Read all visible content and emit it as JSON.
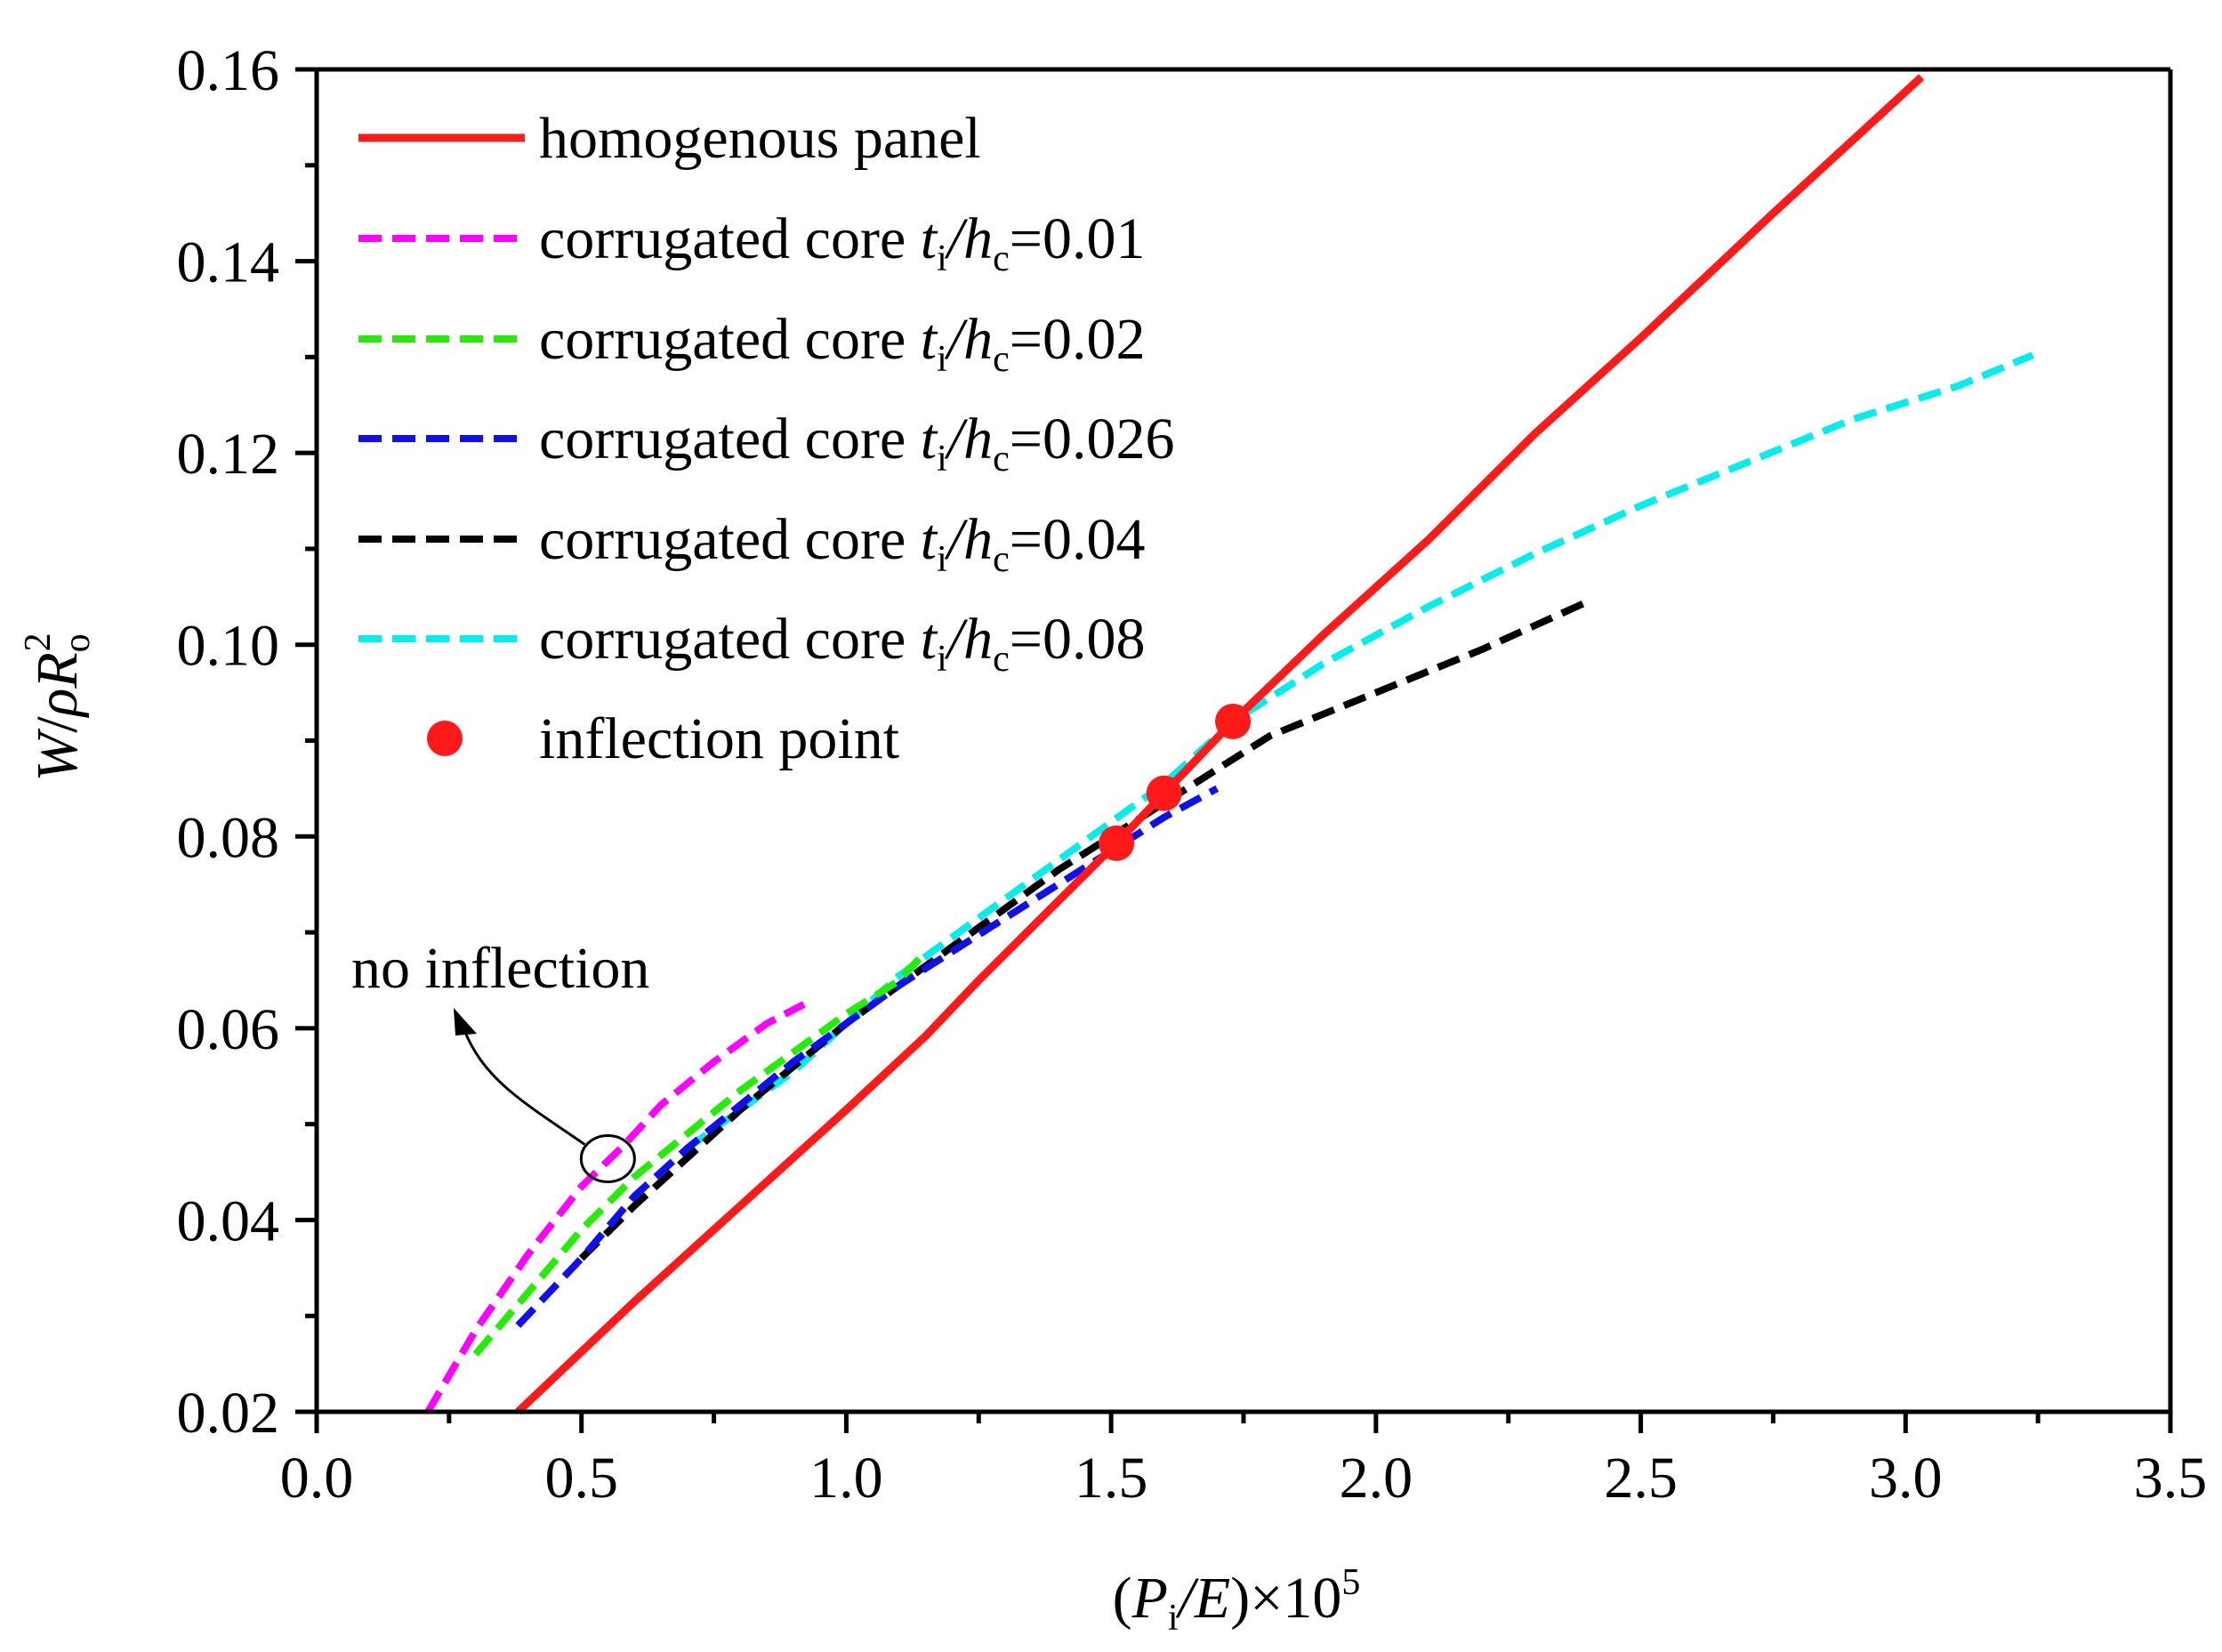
{
  "chart_data": {
    "type": "line",
    "title": "",
    "xlabel": "(Pi/E)×10^5",
    "ylabel": "W/ρRo^2",
    "xlabel_parts": {
      "open": "(",
      "P": "P",
      "P_sub": "i",
      "slash_E": "/E",
      "close_times": ")×10",
      "exp": "5"
    },
    "ylabel_parts": {
      "W": "W",
      "slash": "/",
      "rho": "ρ",
      "R": "R",
      "R_sub": "o",
      "R_sup": "2"
    },
    "xlim": [
      0.0,
      3.5
    ],
    "ylim": [
      0.02,
      0.16
    ],
    "xticks": [
      "0.0",
      "0.5",
      "1.0",
      "1.5",
      "2.0",
      "2.5",
      "3.0",
      "3.5"
    ],
    "yticks": [
      "0.02",
      "0.04",
      "0.06",
      "0.08",
      "0.10",
      "0.12",
      "0.14",
      "0.16"
    ],
    "grid": false,
    "legend_position": "top-left",
    "legend_prefix": "corrugated core ",
    "legend_t": "t",
    "legend_t_sub": "i",
    "legend_slash_h": "/h",
    "legend_h_sub": "c",
    "series": [
      {
        "name": "homogenous panel",
        "label_main": "homogenous panel",
        "color": "#ff1a1a",
        "dash": "solid",
        "x": [
          0.38,
          0.6,
          0.8,
          1.0,
          1.15,
          1.25,
          1.35,
          1.45,
          1.51,
          1.6,
          1.73,
          1.9,
          2.1,
          2.3,
          2.5,
          2.75,
          3.03
        ],
        "y": [
          0.02,
          0.0315,
          0.0415,
          0.0515,
          0.0592,
          0.065,
          0.0705,
          0.076,
          0.0793,
          0.0845,
          0.092,
          0.101,
          0.111,
          0.122,
          0.132,
          0.145,
          0.1592
        ]
      },
      {
        "name": "corrugated core ti/hc=0.01",
        "label_value": "=0.01",
        "color": "#ff00ff",
        "dash": "dashed",
        "x": [
          0.21,
          0.3,
          0.4,
          0.5,
          0.58,
          0.65,
          0.75,
          0.85,
          0.92
        ],
        "y": [
          0.02,
          0.0285,
          0.0365,
          0.0435,
          0.0478,
          0.052,
          0.0565,
          0.0605,
          0.0625
        ]
      },
      {
        "name": "corrugated core ti/hc=0.02",
        "label_value": "=0.02",
        "color": "#22ee00",
        "dash": "dashed",
        "x": [
          0.3,
          0.4,
          0.5,
          0.6,
          0.7,
          0.8,
          0.9,
          1.0,
          1.1,
          1.15
        ],
        "y": [
          0.026,
          0.0325,
          0.039,
          0.0445,
          0.049,
          0.0535,
          0.0575,
          0.0615,
          0.065,
          0.068
        ]
      },
      {
        "name": "corrugated core ti/hc=0.026",
        "label_value": "=0.026",
        "color": "#1010ee",
        "dash": "dashed",
        "x": [
          0.38,
          0.5,
          0.6,
          0.7,
          0.8,
          0.9,
          1.0,
          1.1,
          1.2,
          1.3,
          1.4,
          1.5,
          1.6,
          1.7
        ],
        "y": [
          0.029,
          0.036,
          0.0425,
          0.0475,
          0.052,
          0.0565,
          0.0605,
          0.0645,
          0.068,
          0.0715,
          0.075,
          0.0785,
          0.082,
          0.085
        ]
      },
      {
        "name": "corrugated core ti/hc=0.04",
        "label_value": "=0.04",
        "color": "#000000",
        "dash": "dashed",
        "x": [
          0.5,
          0.6,
          0.7,
          0.8,
          0.9,
          1.0,
          1.1,
          1.2,
          1.3,
          1.4,
          1.5,
          1.6,
          1.7,
          1.8,
          2.0,
          2.2,
          2.4
        ],
        "y": [
          0.036,
          0.0415,
          0.0465,
          0.0515,
          0.056,
          0.0605,
          0.0645,
          0.0685,
          0.0725,
          0.0765,
          0.08,
          0.0835,
          0.087,
          0.0905,
          0.095,
          0.0995,
          0.1045
        ]
      },
      {
        "name": "corrugated core ti/hc=0.08",
        "label_value": "=0.08",
        "color": "#00eeee",
        "dash": "dashed",
        "x": [
          0.7,
          0.8,
          0.9,
          1.0,
          1.1,
          1.2,
          1.3,
          1.4,
          1.5,
          1.6,
          1.73,
          1.9,
          2.1,
          2.3,
          2.5,
          2.7,
          2.9,
          3.1,
          3.24
        ],
        "y": [
          0.0475,
          0.0515,
          0.0555,
          0.0605,
          0.0655,
          0.0695,
          0.0735,
          0.0775,
          0.0815,
          0.0855,
          0.092,
          0.098,
          0.104,
          0.1095,
          0.1145,
          0.119,
          0.1235,
          0.127,
          0.1302
        ]
      }
    ],
    "inflection_points": {
      "label": "inflection point",
      "color": "#ff1a1a",
      "x": [
        1.51,
        1.6,
        1.73
      ],
      "y": [
        0.0793,
        0.0845,
        0.092
      ]
    },
    "annotation": {
      "text": "no inflection",
      "target_x": 0.58,
      "target_y": 0.0464
    }
  }
}
